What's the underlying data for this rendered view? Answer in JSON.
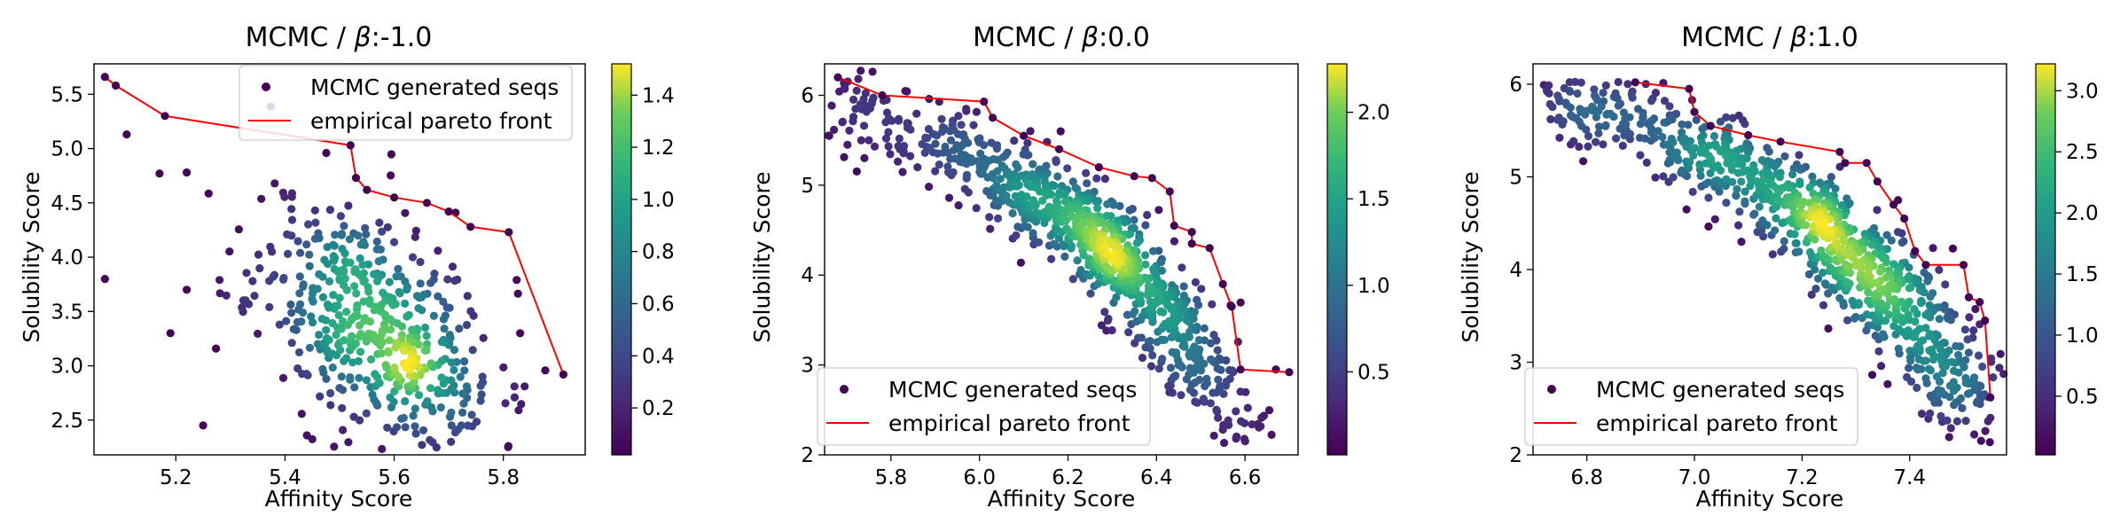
{
  "colors": {
    "pareto": "#ff0000",
    "axes": "#000000",
    "legend_edge": "#cccccc"
  },
  "colormap": "viridis",
  "chart_data": [
    {
      "type": "scatter",
      "title": "MCMC / β:-1.0",
      "title_prefix": "MCMC / ",
      "title_beta": "β",
      "title_value": ":-1.0",
      "xlabel": "Affinity Score",
      "ylabel": "Solubility Score",
      "xlim": [
        5.05,
        5.95
      ],
      "ylim": [
        2.18,
        5.78
      ],
      "xticks": [
        "5.2",
        "5.4",
        "5.6",
        "5.8"
      ],
      "yticks": [
        "2.5",
        "3.0",
        "3.5",
        "4.0",
        "4.5",
        "5.0",
        "5.5"
      ],
      "colorbar": {
        "min": 0.02,
        "max": 1.52,
        "ticks": [
          "0.2",
          "0.4",
          "0.6",
          "0.8",
          "1.0",
          "1.2",
          "1.4"
        ]
      },
      "legend_position": "top-right",
      "legend": [
        "MCMC generated seqs",
        "empirical pareto front"
      ],
      "cloud": {
        "n": 520,
        "center": [
          5.57,
          3.35
        ],
        "spread": [
          0.11,
          0.6
        ],
        "corr": -0.45,
        "seed": 11
      },
      "pareto_front": [
        [
          5.07,
          5.66
        ],
        [
          5.09,
          5.58
        ],
        [
          5.18,
          5.3
        ],
        [
          5.52,
          5.03
        ],
        [
          5.53,
          4.73
        ],
        [
          5.55,
          4.62
        ],
        [
          5.6,
          4.55
        ],
        [
          5.66,
          4.5
        ],
        [
          5.7,
          4.42
        ],
        [
          5.74,
          4.28
        ],
        [
          5.81,
          4.23
        ],
        [
          5.91,
          2.92
        ]
      ],
      "outliers": [
        [
          5.07,
          3.8
        ],
        [
          5.11,
          5.13
        ],
        [
          5.25,
          2.45
        ],
        [
          5.19,
          3.3
        ],
        [
          5.17,
          4.77
        ],
        [
          5.22,
          4.78
        ],
        [
          5.28,
          3.79
        ],
        [
          5.44,
          2.36
        ],
        [
          5.22,
          3.7
        ]
      ]
    },
    {
      "type": "scatter",
      "title": "MCMC / β:0.0",
      "title_prefix": "MCMC / ",
      "title_beta": "β",
      "title_value": ":0.0",
      "xlabel": "Affinity Score",
      "ylabel": "Solubility Score",
      "xlim": [
        5.65,
        6.72
      ],
      "ylim": [
        2.0,
        6.35
      ],
      "xticks": [
        "5.8",
        "6.0",
        "6.2",
        "6.4",
        "6.6"
      ],
      "yticks": [
        "2",
        "3",
        "4",
        "5",
        "6"
      ],
      "colorbar": {
        "min": 0.02,
        "max": 2.28,
        "ticks": [
          "0.5",
          "1.0",
          "1.5",
          "2.0"
        ]
      },
      "legend_position": "bottom-left",
      "legend": [
        "MCMC generated seqs",
        "empirical pareto front"
      ],
      "curve": [
        [
          5.7,
          5.85
        ],
        [
          5.9,
          5.45
        ],
        [
          6.05,
          5.1
        ],
        [
          6.2,
          4.7
        ],
        [
          6.3,
          4.3
        ],
        [
          6.38,
          3.8
        ],
        [
          6.45,
          3.2
        ],
        [
          6.52,
          2.7
        ],
        [
          6.58,
          2.45
        ]
      ],
      "cloud": {
        "n": 900,
        "spread_along": 0.02,
        "spread_across": 0.22,
        "seed": 23
      },
      "pareto_front": [
        [
          5.68,
          6.2
        ],
        [
          5.78,
          6.0
        ],
        [
          6.01,
          5.93
        ],
        [
          6.03,
          5.75
        ],
        [
          6.1,
          5.55
        ],
        [
          6.18,
          5.4
        ],
        [
          6.27,
          5.2
        ],
        [
          6.35,
          5.1
        ],
        [
          6.39,
          5.08
        ],
        [
          6.43,
          4.93
        ],
        [
          6.44,
          4.55
        ],
        [
          6.48,
          4.48
        ],
        [
          6.48,
          4.35
        ],
        [
          6.52,
          4.3
        ],
        [
          6.55,
          3.9
        ],
        [
          6.57,
          3.65
        ],
        [
          6.59,
          2.95
        ],
        [
          6.7,
          2.92
        ]
      ],
      "outliers": [
        [
          5.69,
          5.7
        ],
        [
          5.72,
          5.85
        ],
        [
          5.74,
          5.3
        ],
        [
          5.75,
          5.5
        ],
        [
          5.82,
          5.4
        ],
        [
          5.86,
          5.2
        ],
        [
          6.67,
          2.95
        ],
        [
          6.58,
          2.18
        ],
        [
          5.97,
          5.85
        ]
      ]
    },
    {
      "type": "scatter",
      "title": "MCMC / β:1.0",
      "title_prefix": "MCMC / ",
      "title_beta": "β",
      "title_value": ":1.0",
      "xlabel": "Affinity Score",
      "ylabel": "Solubility Score",
      "xlim": [
        6.7,
        7.58
      ],
      "ylim": [
        2.0,
        6.22
      ],
      "xticks": [
        "6.8",
        "7.0",
        "7.2",
        "7.4"
      ],
      "yticks": [
        "2",
        "3",
        "4",
        "5",
        "6"
      ],
      "colorbar": {
        "min": 0.02,
        "max": 3.22,
        "ticks": [
          "0.5",
          "1.0",
          "1.5",
          "2.0",
          "2.5",
          "3.0"
        ]
      },
      "legend_position": "bottom-left",
      "legend": [
        "MCMC generated seqs",
        "empirical pareto front"
      ],
      "curve": [
        [
          6.75,
          5.8
        ],
        [
          6.9,
          5.55
        ],
        [
          7.05,
          5.2
        ],
        [
          7.2,
          4.7
        ],
        [
          7.3,
          4.1
        ],
        [
          7.38,
          3.6
        ],
        [
          7.45,
          3.0
        ],
        [
          7.5,
          2.7
        ],
        [
          7.53,
          2.4
        ]
      ],
      "cloud": {
        "n": 950,
        "spread_along": 0.02,
        "spread_across": 0.2,
        "seed": 37
      },
      "pareto_front": [
        [
          6.89,
          6.02
        ],
        [
          6.99,
          5.95
        ],
        [
          7.0,
          5.7
        ],
        [
          7.03,
          5.55
        ],
        [
          7.1,
          5.45
        ],
        [
          7.16,
          5.38
        ],
        [
          7.27,
          5.27
        ],
        [
          7.28,
          5.15
        ],
        [
          7.32,
          5.15
        ],
        [
          7.34,
          4.95
        ],
        [
          7.37,
          4.7
        ],
        [
          7.39,
          4.55
        ],
        [
          7.41,
          4.2
        ],
        [
          7.43,
          4.05
        ],
        [
          7.5,
          4.05
        ],
        [
          7.51,
          3.7
        ],
        [
          7.53,
          3.65
        ],
        [
          7.54,
          3.45
        ],
        [
          7.55,
          2.62
        ]
      ],
      "outliers": [
        [
          6.73,
          5.9
        ],
        [
          6.77,
          5.35
        ],
        [
          6.79,
          5.55
        ],
        [
          6.83,
          5.35
        ],
        [
          6.85,
          5.65
        ],
        [
          7.52,
          2.22
        ],
        [
          7.55,
          2.4
        ],
        [
          6.92,
          5.82
        ]
      ]
    }
  ]
}
